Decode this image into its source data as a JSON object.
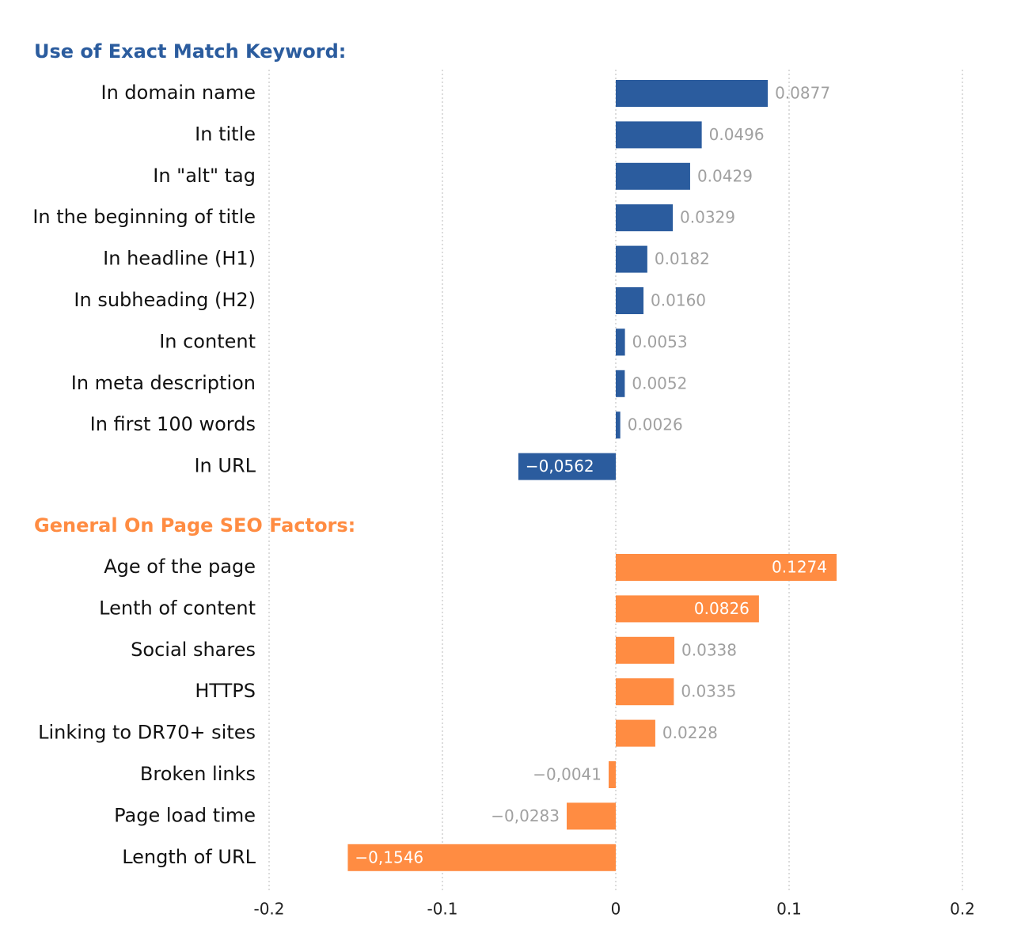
{
  "chart_data": {
    "type": "bar",
    "orientation": "horizontal",
    "xlim": [
      -0.2,
      0.2
    ],
    "x_ticks": [
      "-0.2",
      "-0.1",
      "0",
      "0.1",
      "0.2"
    ],
    "x_tick_values": [
      -0.2,
      -0.1,
      0,
      0.1,
      0.2
    ],
    "grid": true,
    "groups": [
      {
        "title": "Use of Exact Match Keyword:",
        "color": "#2b5c9e",
        "categories": [
          "In domain name",
          "In title",
          "In \"alt\" tag",
          "In the beginning of title",
          "In headline (H1)",
          "In subheading (H2)",
          "In content",
          "In meta description",
          "In first 100 words",
          "In URL"
        ],
        "values": [
          0.0877,
          0.0496,
          0.0429,
          0.0329,
          0.0182,
          0.016,
          0.0053,
          0.0052,
          0.0026,
          -0.0562
        ],
        "labels": [
          "0.0877",
          "0.0496",
          "0.0429",
          "0.0329",
          "0.0182",
          "0.0160",
          "0.0053",
          "0.0052",
          "0.0026",
          "−0,0562"
        ],
        "label_inside": [
          false,
          false,
          false,
          false,
          false,
          false,
          false,
          false,
          false,
          true
        ]
      },
      {
        "title": "General On Page SEO Factors:",
        "color": "#ff8c42",
        "categories": [
          "Age of the page",
          "Lenth of content",
          "Social shares",
          "HTTPS",
          "Linking to DR70+ sites",
          "Broken links",
          "Page load time",
          "Length of URL"
        ],
        "values": [
          0.1274,
          0.0826,
          0.0338,
          0.0335,
          0.0228,
          -0.0041,
          -0.0283,
          -0.1546
        ],
        "labels": [
          "0.1274",
          "0.0826",
          "0.0338",
          "0.0335",
          "0.0228",
          "−0,0041",
          "−0,0283",
          "−0,1546"
        ],
        "label_inside": [
          true,
          true,
          false,
          false,
          false,
          false,
          false,
          true
        ]
      }
    ]
  },
  "colors": {
    "outside_label": "#a0a0a0",
    "inside_label": "#ffffff"
  }
}
